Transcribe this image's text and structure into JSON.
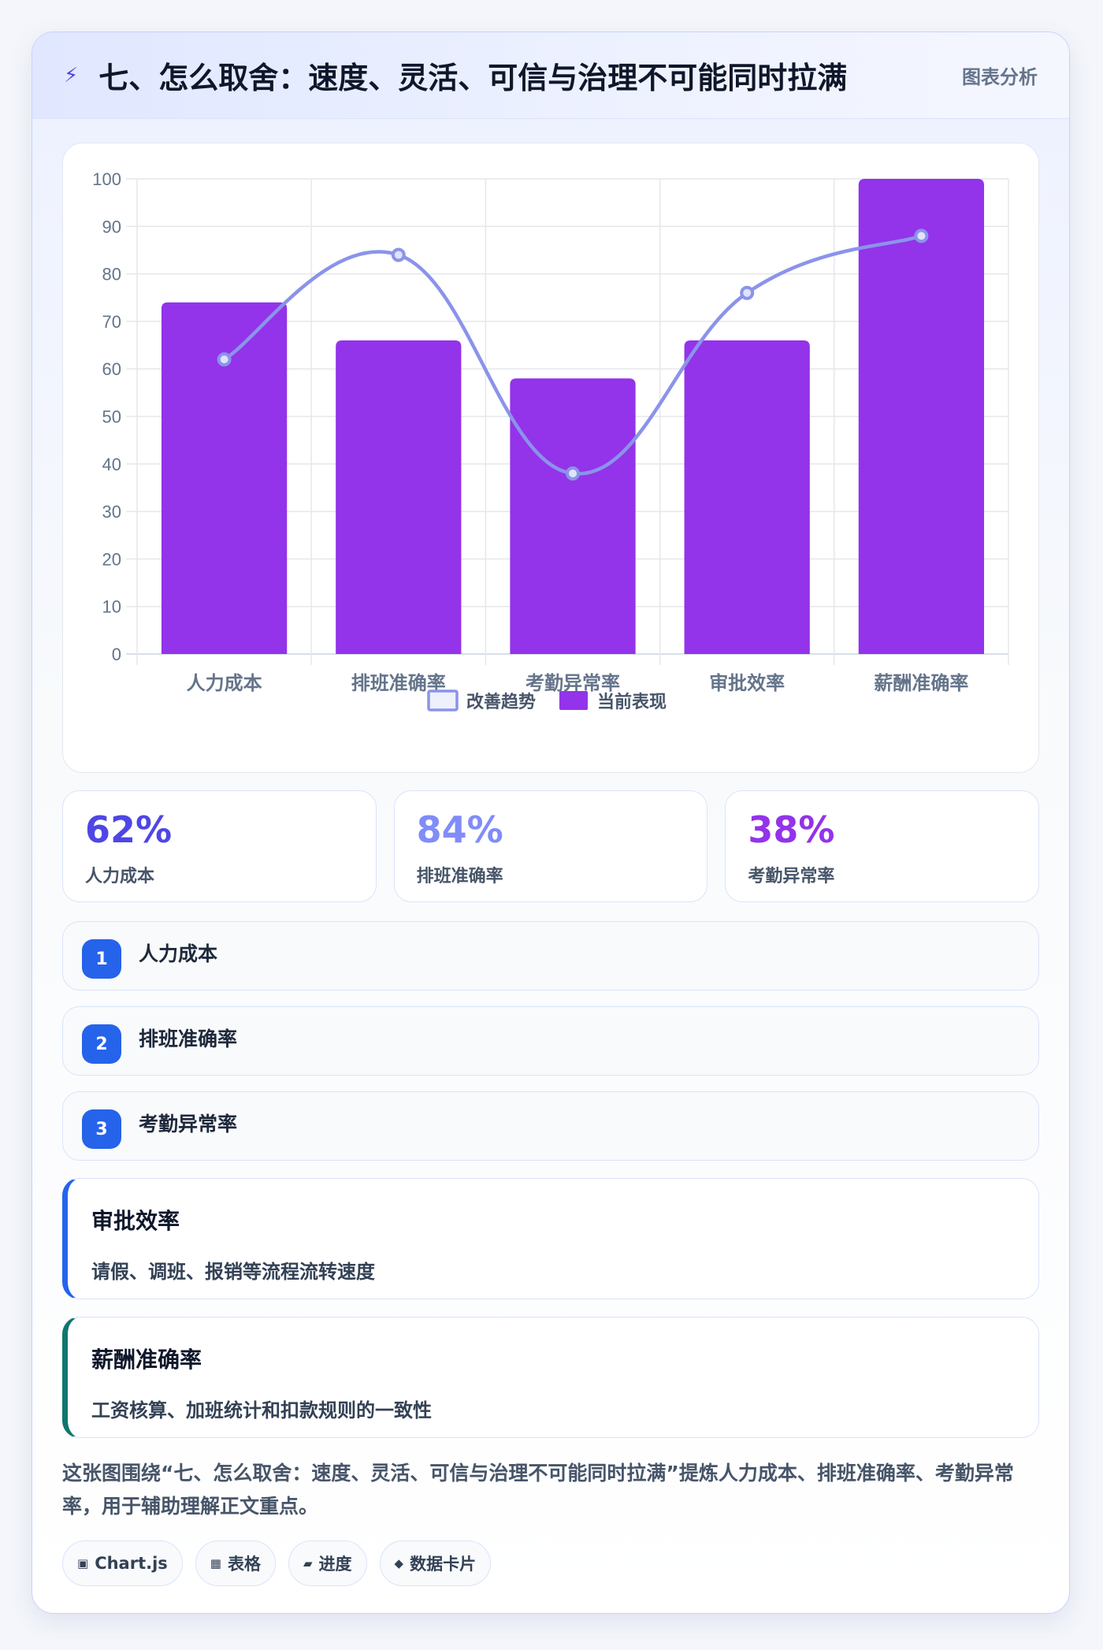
{
  "header": {
    "title": "七、怎么取舍：速度、灵活、可信与治理不可能同时拉满",
    "tag": "图表分析",
    "icon": "bolt-icon"
  },
  "chart_data": {
    "type": "bar",
    "categories": [
      "人力成本",
      "排班准确率",
      "考勤异常率",
      "审批效率",
      "薪酬准确率"
    ],
    "series": [
      {
        "name": "改善趋势",
        "type": "line",
        "values": [
          62,
          84,
          38,
          76,
          88
        ],
        "color": "#8b93ea"
      },
      {
        "name": "当前表现",
        "type": "bar",
        "values": [
          74,
          66,
          58,
          66,
          100
        ],
        "color": "#9333ea"
      }
    ],
    "ylim": [
      0,
      100
    ],
    "yticks": [
      0,
      10,
      20,
      30,
      40,
      50,
      60,
      70,
      80,
      90,
      100
    ],
    "grid": true,
    "legend": "bottom"
  },
  "stats": [
    {
      "value": "62%",
      "label": "人力成本",
      "color": "#4f46e5"
    },
    {
      "value": "84%",
      "label": "排班准确率",
      "color": "#818cf8"
    },
    {
      "value": "38%",
      "label": "考勤异常率",
      "color": "#9333ea"
    }
  ],
  "list": [
    {
      "num": "1",
      "label": "人力成本"
    },
    {
      "num": "2",
      "label": "排班准确率"
    },
    {
      "num": "3",
      "label": "考勤异常率"
    }
  ],
  "features": [
    {
      "title": "审批效率",
      "desc": "请假、调班、报销等流程流转速度"
    },
    {
      "title": "薪酬准确率",
      "desc": "工资核算、加班统计和扣款规则的一致性"
    }
  ],
  "summary": "这张图围绕“七、怎么取舍：速度、灵活、可信与治理不可能同时拉满”提炼人力成本、排班准确率、考勤异常率，用于辅助理解正文重点。",
  "chips": [
    {
      "icon": "▣",
      "label": "Chart.js"
    },
    {
      "icon": "▦",
      "label": "表格"
    },
    {
      "icon": "▰",
      "label": "进度"
    },
    {
      "icon": "◆",
      "label": "数据卡片"
    }
  ]
}
